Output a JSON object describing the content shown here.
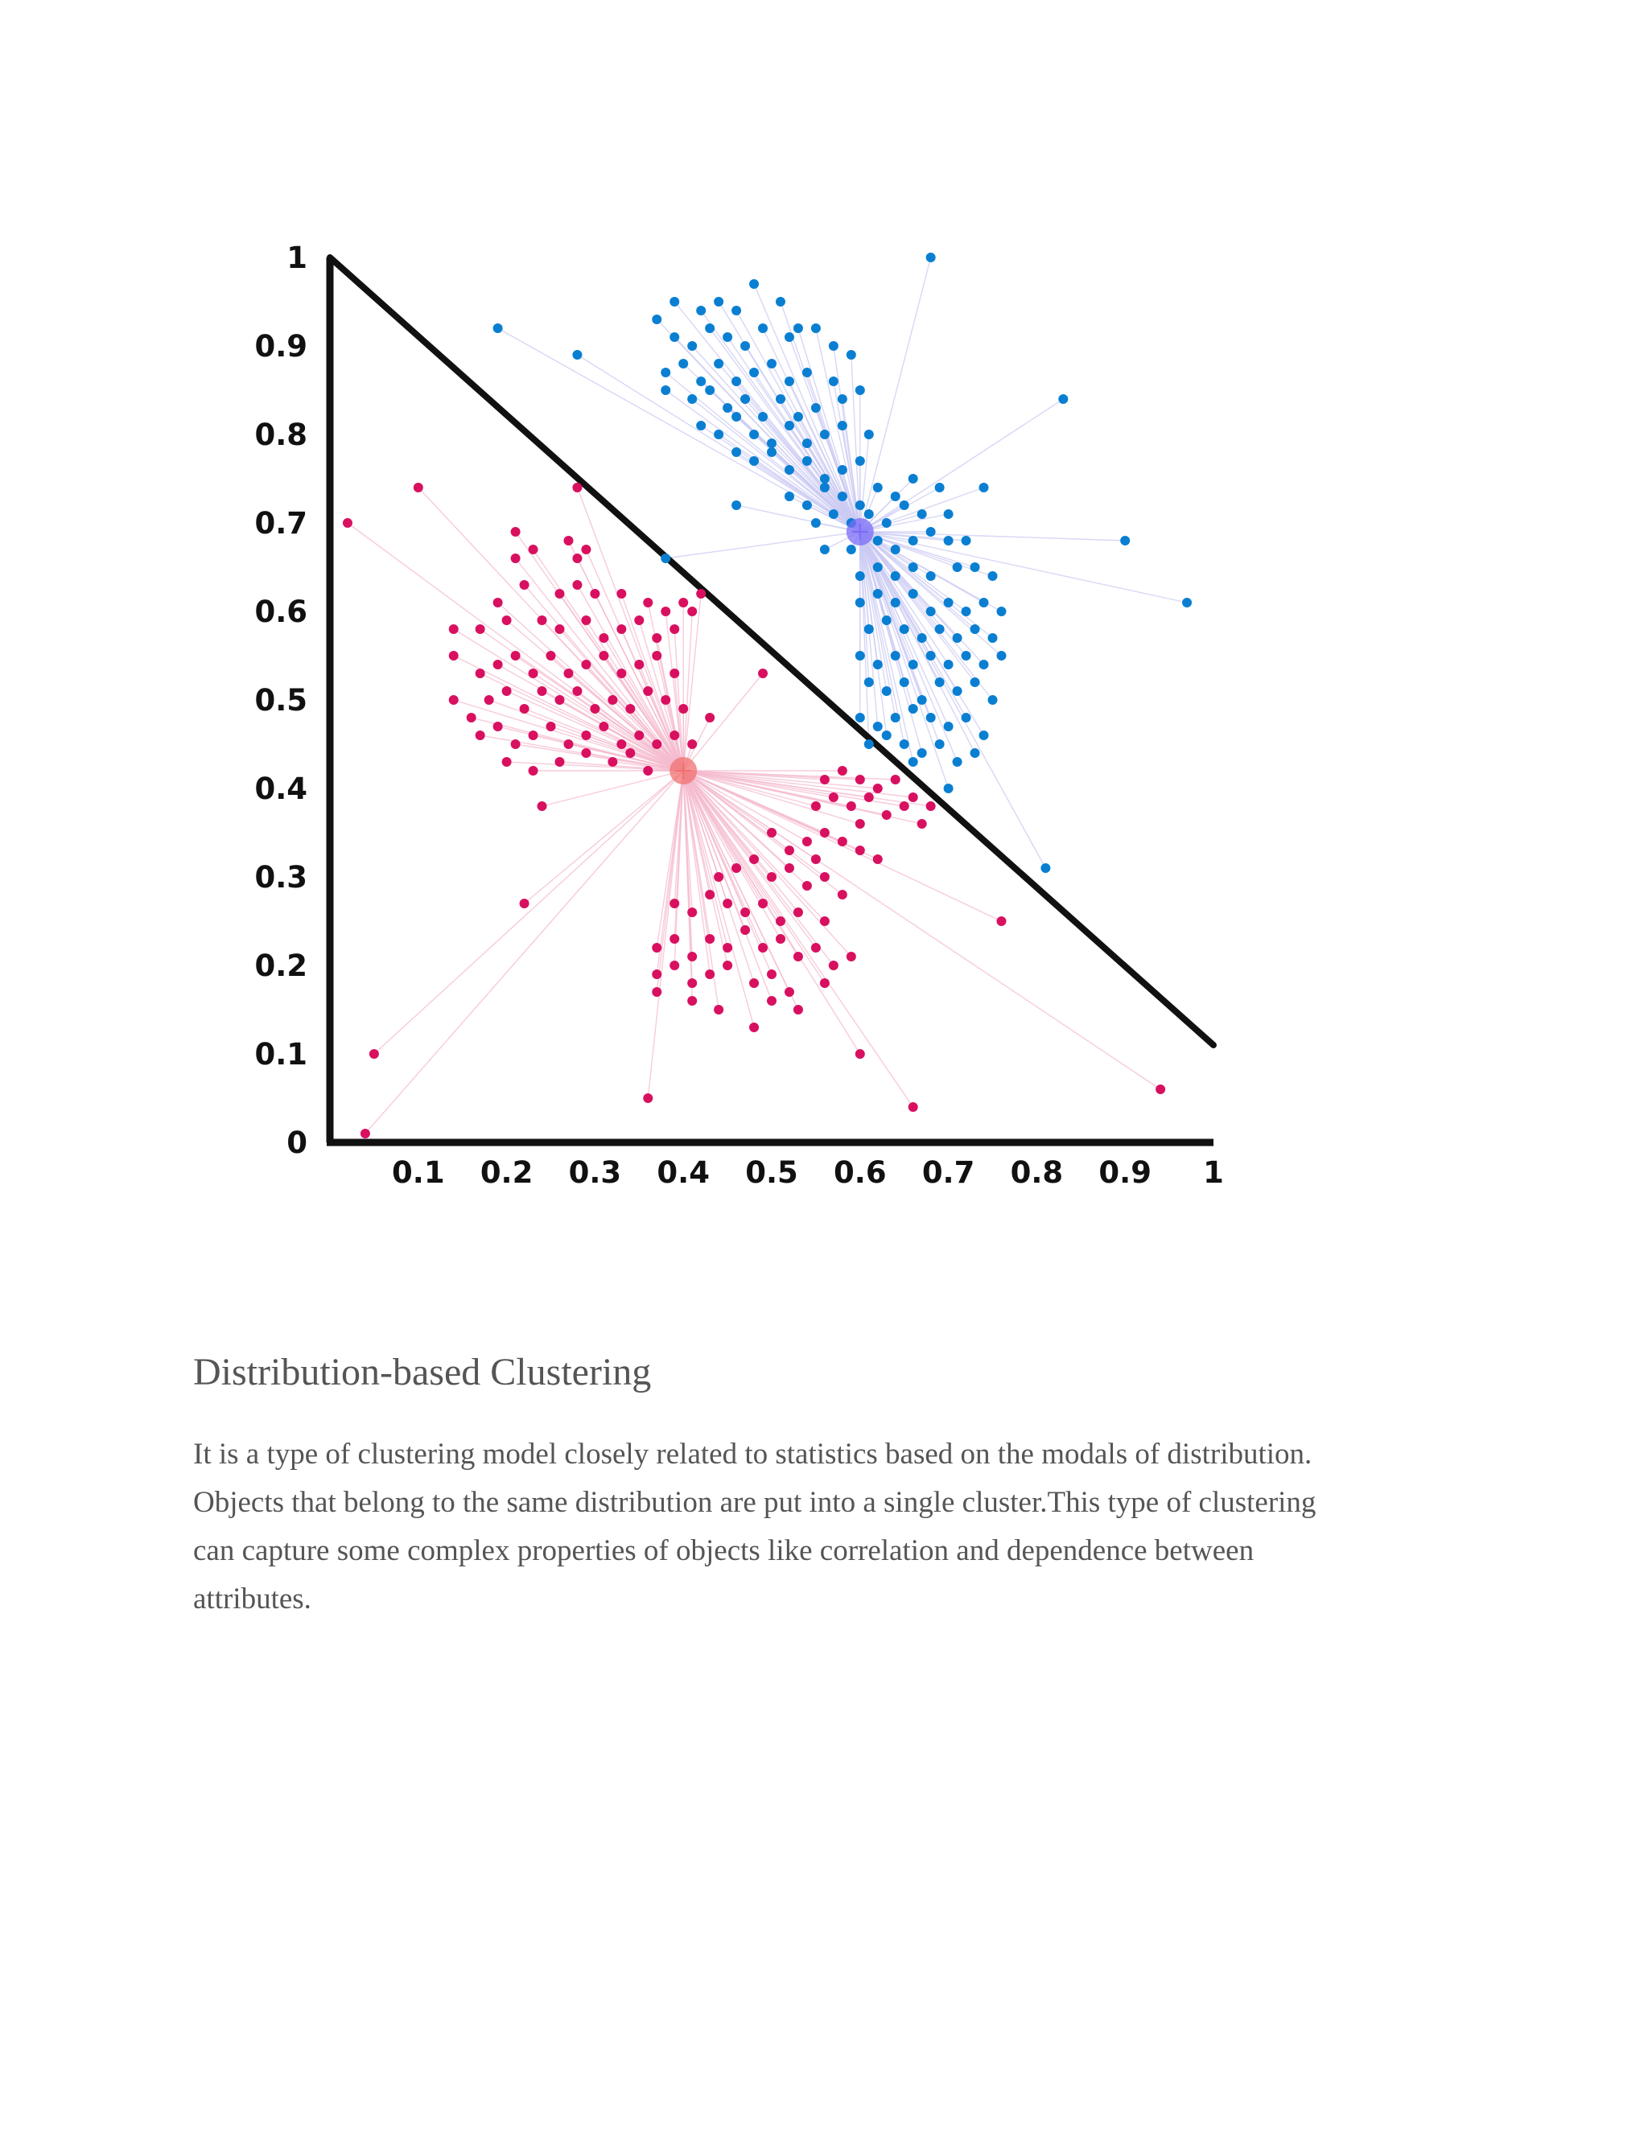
{
  "chart_data": {
    "type": "scatter",
    "title": "",
    "xlabel": "",
    "ylabel": "",
    "xlim": [
      0,
      1
    ],
    "ylim": [
      0,
      1
    ],
    "x_ticks": [
      "0.1",
      "0.2",
      "0.3",
      "0.4",
      "0.5",
      "0.6",
      "0.7",
      "0.8",
      "0.9",
      "1"
    ],
    "y_ticks": [
      "0",
      "0.1",
      "0.2",
      "0.3",
      "0.4",
      "0.5",
      "0.6",
      "0.7",
      "0.8",
      "0.9",
      "1"
    ],
    "decision_boundary": {
      "from": [
        0,
        1
      ],
      "to": [
        1,
        0.11
      ]
    },
    "series": [
      {
        "color": "#0a7fd2",
        "link_color": "#c9c9f3",
        "centroid": [
          0.6,
          0.69
        ],
        "centroid_color": "#7a6cf5",
        "points": [
          [
            0.19,
            0.92
          ],
          [
            0.28,
            0.89
          ],
          [
            0.68,
            1.0
          ],
          [
            0.83,
            0.84
          ],
          [
            0.9,
            0.68
          ],
          [
            0.97,
            0.61
          ],
          [
            0.81,
            0.31
          ],
          [
            0.46,
            0.72
          ],
          [
            0.38,
            0.66
          ],
          [
            0.37,
            0.93
          ],
          [
            0.39,
            0.95
          ],
          [
            0.42,
            0.94
          ],
          [
            0.44,
            0.95
          ],
          [
            0.46,
            0.94
          ],
          [
            0.48,
            0.97
          ],
          [
            0.51,
            0.95
          ],
          [
            0.53,
            0.92
          ],
          [
            0.55,
            0.92
          ],
          [
            0.59,
            0.89
          ],
          [
            0.39,
            0.91
          ],
          [
            0.41,
            0.9
          ],
          [
            0.43,
            0.92
          ],
          [
            0.45,
            0.91
          ],
          [
            0.47,
            0.9
          ],
          [
            0.49,
            0.92
          ],
          [
            0.52,
            0.91
          ],
          [
            0.57,
            0.9
          ],
          [
            0.38,
            0.87
          ],
          [
            0.4,
            0.88
          ],
          [
            0.42,
            0.86
          ],
          [
            0.44,
            0.88
          ],
          [
            0.46,
            0.86
          ],
          [
            0.48,
            0.87
          ],
          [
            0.5,
            0.88
          ],
          [
            0.52,
            0.86
          ],
          [
            0.54,
            0.87
          ],
          [
            0.57,
            0.86
          ],
          [
            0.38,
            0.85
          ],
          [
            0.41,
            0.84
          ],
          [
            0.43,
            0.85
          ],
          [
            0.45,
            0.83
          ],
          [
            0.47,
            0.84
          ],
          [
            0.49,
            0.82
          ],
          [
            0.51,
            0.84
          ],
          [
            0.53,
            0.82
          ],
          [
            0.55,
            0.83
          ],
          [
            0.58,
            0.84
          ],
          [
            0.6,
            0.85
          ],
          [
            0.42,
            0.81
          ],
          [
            0.44,
            0.8
          ],
          [
            0.46,
            0.82
          ],
          [
            0.48,
            0.8
          ],
          [
            0.5,
            0.79
          ],
          [
            0.52,
            0.81
          ],
          [
            0.54,
            0.79
          ],
          [
            0.56,
            0.8
          ],
          [
            0.58,
            0.81
          ],
          [
            0.61,
            0.8
          ],
          [
            0.46,
            0.78
          ],
          [
            0.48,
            0.77
          ],
          [
            0.5,
            0.78
          ],
          [
            0.52,
            0.76
          ],
          [
            0.54,
            0.77
          ],
          [
            0.56,
            0.75
          ],
          [
            0.58,
            0.76
          ],
          [
            0.6,
            0.77
          ],
          [
            0.52,
            0.73
          ],
          [
            0.54,
            0.72
          ],
          [
            0.56,
            0.74
          ],
          [
            0.58,
            0.73
          ],
          [
            0.6,
            0.72
          ],
          [
            0.62,
            0.74
          ],
          [
            0.64,
            0.73
          ],
          [
            0.66,
            0.75
          ],
          [
            0.69,
            0.74
          ],
          [
            0.74,
            0.74
          ],
          [
            0.55,
            0.7
          ],
          [
            0.57,
            0.71
          ],
          [
            0.59,
            0.7
          ],
          [
            0.61,
            0.71
          ],
          [
            0.63,
            0.7
          ],
          [
            0.65,
            0.72
          ],
          [
            0.67,
            0.71
          ],
          [
            0.7,
            0.71
          ],
          [
            0.56,
            0.67
          ],
          [
            0.59,
            0.67
          ],
          [
            0.62,
            0.68
          ],
          [
            0.64,
            0.67
          ],
          [
            0.66,
            0.68
          ],
          [
            0.68,
            0.69
          ],
          [
            0.7,
            0.68
          ],
          [
            0.72,
            0.68
          ],
          [
            0.6,
            0.64
          ],
          [
            0.62,
            0.65
          ],
          [
            0.64,
            0.64
          ],
          [
            0.66,
            0.65
          ],
          [
            0.68,
            0.64
          ],
          [
            0.71,
            0.65
          ],
          [
            0.73,
            0.65
          ],
          [
            0.75,
            0.64
          ],
          [
            0.6,
            0.61
          ],
          [
            0.62,
            0.62
          ],
          [
            0.64,
            0.61
          ],
          [
            0.66,
            0.62
          ],
          [
            0.68,
            0.6
          ],
          [
            0.7,
            0.61
          ],
          [
            0.72,
            0.6
          ],
          [
            0.74,
            0.61
          ],
          [
            0.76,
            0.6
          ],
          [
            0.61,
            0.58
          ],
          [
            0.63,
            0.59
          ],
          [
            0.65,
            0.58
          ],
          [
            0.67,
            0.57
          ],
          [
            0.69,
            0.58
          ],
          [
            0.71,
            0.57
          ],
          [
            0.73,
            0.58
          ],
          [
            0.75,
            0.57
          ],
          [
            0.6,
            0.55
          ],
          [
            0.62,
            0.54
          ],
          [
            0.64,
            0.55
          ],
          [
            0.66,
            0.54
          ],
          [
            0.68,
            0.55
          ],
          [
            0.7,
            0.54
          ],
          [
            0.72,
            0.55
          ],
          [
            0.74,
            0.54
          ],
          [
            0.76,
            0.55
          ],
          [
            0.61,
            0.52
          ],
          [
            0.63,
            0.51
          ],
          [
            0.65,
            0.52
          ],
          [
            0.67,
            0.5
          ],
          [
            0.69,
            0.52
          ],
          [
            0.71,
            0.51
          ],
          [
            0.73,
            0.52
          ],
          [
            0.75,
            0.5
          ],
          [
            0.6,
            0.48
          ],
          [
            0.62,
            0.47
          ],
          [
            0.64,
            0.48
          ],
          [
            0.66,
            0.49
          ],
          [
            0.68,
            0.48
          ],
          [
            0.7,
            0.47
          ],
          [
            0.72,
            0.48
          ],
          [
            0.74,
            0.46
          ],
          [
            0.61,
            0.45
          ],
          [
            0.63,
            0.46
          ],
          [
            0.65,
            0.45
          ],
          [
            0.67,
            0.44
          ],
          [
            0.69,
            0.45
          ],
          [
            0.71,
            0.43
          ],
          [
            0.73,
            0.44
          ],
          [
            0.7,
            0.4
          ],
          [
            0.66,
            0.43
          ]
        ]
      },
      {
        "color": "#d8105f",
        "link_color": "#f4b9cd",
        "centroid": [
          0.4,
          0.42
        ],
        "centroid_color": "#f07070",
        "points": [
          [
            0.02,
            0.7
          ],
          [
            0.1,
            0.74
          ],
          [
            0.28,
            0.74
          ],
          [
            0.49,
            0.53
          ],
          [
            0.05,
            0.1
          ],
          [
            0.04,
            0.01
          ],
          [
            0.22,
            0.27
          ],
          [
            0.36,
            0.05
          ],
          [
            0.6,
            0.1
          ],
          [
            0.66,
            0.04
          ],
          [
            0.76,
            0.25
          ],
          [
            0.94,
            0.06
          ],
          [
            0.24,
            0.38
          ],
          [
            0.21,
            0.69
          ],
          [
            0.27,
            0.68
          ],
          [
            0.28,
            0.66
          ],
          [
            0.21,
            0.66
          ],
          [
            0.23,
            0.67
          ],
          [
            0.29,
            0.67
          ],
          [
            0.14,
            0.58
          ],
          [
            0.19,
            0.61
          ],
          [
            0.22,
            0.63
          ],
          [
            0.26,
            0.62
          ],
          [
            0.28,
            0.63
          ],
          [
            0.3,
            0.62
          ],
          [
            0.33,
            0.62
          ],
          [
            0.36,
            0.61
          ],
          [
            0.38,
            0.6
          ],
          [
            0.4,
            0.61
          ],
          [
            0.42,
            0.62
          ],
          [
            0.14,
            0.55
          ],
          [
            0.17,
            0.58
          ],
          [
            0.2,
            0.59
          ],
          [
            0.24,
            0.59
          ],
          [
            0.26,
            0.58
          ],
          [
            0.29,
            0.59
          ],
          [
            0.31,
            0.57
          ],
          [
            0.33,
            0.58
          ],
          [
            0.35,
            0.59
          ],
          [
            0.37,
            0.57
          ],
          [
            0.39,
            0.58
          ],
          [
            0.41,
            0.6
          ],
          [
            0.14,
            0.5
          ],
          [
            0.17,
            0.53
          ],
          [
            0.19,
            0.54
          ],
          [
            0.21,
            0.55
          ],
          [
            0.23,
            0.53
          ],
          [
            0.25,
            0.55
          ],
          [
            0.27,
            0.53
          ],
          [
            0.29,
            0.54
          ],
          [
            0.31,
            0.55
          ],
          [
            0.33,
            0.53
          ],
          [
            0.35,
            0.54
          ],
          [
            0.37,
            0.55
          ],
          [
            0.39,
            0.53
          ],
          [
            0.16,
            0.48
          ],
          [
            0.18,
            0.5
          ],
          [
            0.2,
            0.51
          ],
          [
            0.22,
            0.49
          ],
          [
            0.24,
            0.51
          ],
          [
            0.26,
            0.5
          ],
          [
            0.28,
            0.51
          ],
          [
            0.3,
            0.49
          ],
          [
            0.32,
            0.5
          ],
          [
            0.34,
            0.49
          ],
          [
            0.36,
            0.51
          ],
          [
            0.38,
            0.5
          ],
          [
            0.4,
            0.49
          ],
          [
            0.43,
            0.48
          ],
          [
            0.17,
            0.46
          ],
          [
            0.19,
            0.47
          ],
          [
            0.21,
            0.45
          ],
          [
            0.23,
            0.46
          ],
          [
            0.25,
            0.47
          ],
          [
            0.27,
            0.45
          ],
          [
            0.29,
            0.46
          ],
          [
            0.31,
            0.47
          ],
          [
            0.33,
            0.45
          ],
          [
            0.35,
            0.46
          ],
          [
            0.37,
            0.45
          ],
          [
            0.39,
            0.46
          ],
          [
            0.41,
            0.45
          ],
          [
            0.2,
            0.43
          ],
          [
            0.23,
            0.42
          ],
          [
            0.26,
            0.43
          ],
          [
            0.29,
            0.44
          ],
          [
            0.32,
            0.43
          ],
          [
            0.34,
            0.44
          ],
          [
            0.36,
            0.42
          ],
          [
            0.56,
            0.41
          ],
          [
            0.58,
            0.42
          ],
          [
            0.6,
            0.41
          ],
          [
            0.62,
            0.4
          ],
          [
            0.64,
            0.41
          ],
          [
            0.66,
            0.39
          ],
          [
            0.68,
            0.38
          ],
          [
            0.55,
            0.38
          ],
          [
            0.57,
            0.39
          ],
          [
            0.59,
            0.38
          ],
          [
            0.61,
            0.39
          ],
          [
            0.63,
            0.37
          ],
          [
            0.65,
            0.38
          ],
          [
            0.67,
            0.36
          ],
          [
            0.5,
            0.35
          ],
          [
            0.52,
            0.33
          ],
          [
            0.54,
            0.34
          ],
          [
            0.56,
            0.35
          ],
          [
            0.58,
            0.34
          ],
          [
            0.6,
            0.33
          ],
          [
            0.62,
            0.32
          ],
          [
            0.6,
            0.36
          ],
          [
            0.44,
            0.3
          ],
          [
            0.46,
            0.31
          ],
          [
            0.48,
            0.32
          ],
          [
            0.5,
            0.3
          ],
          [
            0.52,
            0.31
          ],
          [
            0.54,
            0.29
          ],
          [
            0.56,
            0.3
          ],
          [
            0.58,
            0.28
          ],
          [
            0.55,
            0.32
          ],
          [
            0.39,
            0.27
          ],
          [
            0.41,
            0.26
          ],
          [
            0.43,
            0.28
          ],
          [
            0.45,
            0.27
          ],
          [
            0.47,
            0.26
          ],
          [
            0.49,
            0.27
          ],
          [
            0.51,
            0.25
          ],
          [
            0.53,
            0.26
          ],
          [
            0.56,
            0.25
          ],
          [
            0.37,
            0.22
          ],
          [
            0.39,
            0.23
          ],
          [
            0.41,
            0.21
          ],
          [
            0.43,
            0.23
          ],
          [
            0.45,
            0.22
          ],
          [
            0.47,
            0.24
          ],
          [
            0.49,
            0.22
          ],
          [
            0.51,
            0.23
          ],
          [
            0.53,
            0.21
          ],
          [
            0.55,
            0.22
          ],
          [
            0.57,
            0.2
          ],
          [
            0.59,
            0.21
          ],
          [
            0.37,
            0.19
          ],
          [
            0.39,
            0.2
          ],
          [
            0.41,
            0.18
          ],
          [
            0.43,
            0.19
          ],
          [
            0.45,
            0.2
          ],
          [
            0.48,
            0.18
          ],
          [
            0.5,
            0.19
          ],
          [
            0.52,
            0.17
          ],
          [
            0.56,
            0.18
          ],
          [
            0.37,
            0.17
          ],
          [
            0.41,
            0.16
          ],
          [
            0.44,
            0.15
          ],
          [
            0.48,
            0.13
          ],
          [
            0.5,
            0.16
          ],
          [
            0.53,
            0.15
          ]
        ]
      }
    ]
  },
  "section": {
    "heading": "Distribution-based Clustering",
    "body_lines": [
      "It is a type of clustering model closely related to statistics based on the modals of distribution.",
      "Objects that belong to the same distribution are put into a single cluster.This type of clustering",
      "can capture some complex properties of objects like correlation and dependence between",
      "attributes."
    ]
  }
}
